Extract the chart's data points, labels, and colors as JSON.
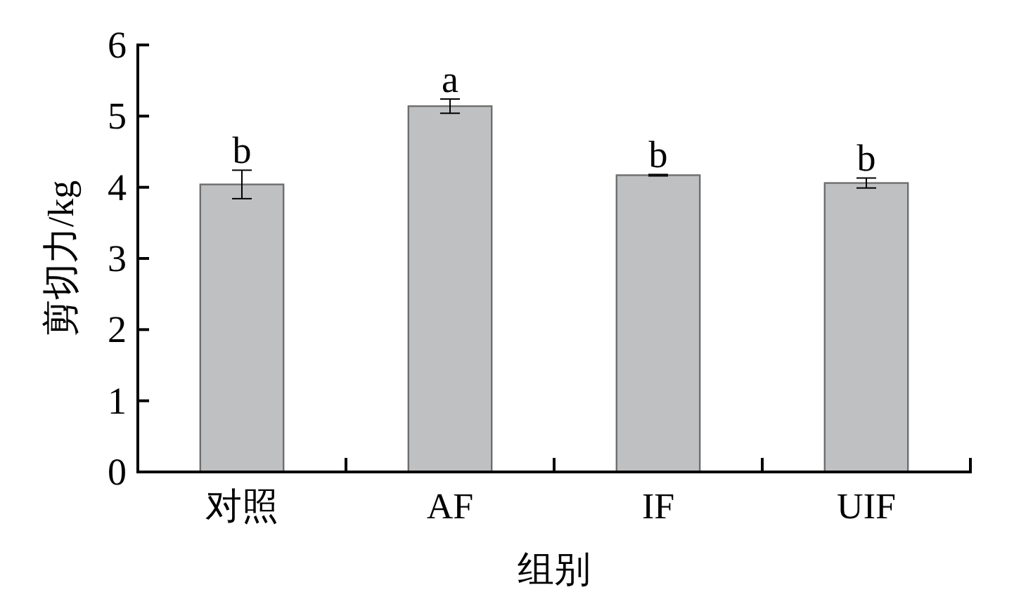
{
  "chart_data": {
    "type": "bar",
    "xlabel": "组别",
    "ylabel": "剪切力/kg",
    "categories": [
      "对照",
      "AF",
      "IF",
      "UIF"
    ],
    "values": [
      4.04,
      5.14,
      4.17,
      4.06
    ],
    "errors": [
      0.2,
      0.1,
      0.01,
      0.07
    ],
    "color": "#bfc0c2",
    "ylim": [
      0,
      6
    ],
    "yticks": [
      0,
      1,
      2,
      3,
      4,
      5,
      6
    ],
    "annotations": [
      {
        "text": "b",
        "x": "对照",
        "y": 4.24
      },
      {
        "text": "a",
        "x": "AF",
        "y": 5.24
      },
      {
        "text": "b",
        "x": "IF",
        "y": 4.18
      },
      {
        "text": "b",
        "x": "UIF",
        "y": 4.13
      }
    ]
  }
}
